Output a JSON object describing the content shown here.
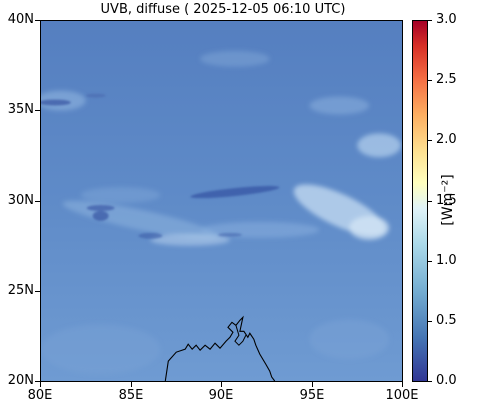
{
  "title": "UVB, diffuse ( 2025-12-05 06:10 UTC)",
  "map": {
    "lon_range": [
      80,
      100
    ],
    "lat_range": [
      20,
      40
    ],
    "x_ticks": [
      "80E",
      "85E",
      "90E",
      "95E",
      "100E"
    ],
    "y_ticks": [
      "20N",
      "25N",
      "30N",
      "35N",
      "40N"
    ],
    "background_color": "#5b86c4",
    "coastline_color": "#000000"
  },
  "colorbar": {
    "ticks": [
      "0.0",
      "0.5",
      "1.0",
      "1.5",
      "2.0",
      "2.5",
      "3.0"
    ],
    "unit": "[Wm⁻²]",
    "range": [
      0,
      3
    ],
    "colormap": "RdYlBu_r"
  }
}
